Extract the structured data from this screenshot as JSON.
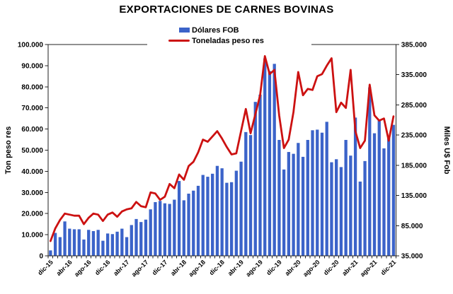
{
  "chart_data": {
    "type": "bar+line",
    "title": "EXPORTACIONES DE CARNES BOVINAS",
    "x_tick_labels": [
      "dic-15",
      "abr-16",
      "ago-16",
      "dic-16",
      "abr-17",
      "ago-17",
      "dic-17",
      "abr-18",
      "ago-18",
      "dic-18",
      "abr-19",
      "ago-19",
      "dic-19",
      "abr-20",
      "ago-20",
      "dic-20",
      "abr-21",
      "ago-21",
      "dic-21"
    ],
    "x_tick_interval": 4,
    "n_points": 73,
    "left_axis": {
      "title": "Ton peso res",
      "min": 0,
      "max": 100000,
      "step": 10000,
      "tick_labels": [
        "0",
        "10.000",
        "20.000",
        "30.000",
        "40.000",
        "50.000",
        "60.000",
        "70.000",
        "80.000",
        "90.000",
        "100.000"
      ]
    },
    "right_axis": {
      "title": "Miles U$ Fob",
      "min": 35000,
      "max": 385000,
      "step": 50000,
      "tick_labels": [
        "35.000",
        "85.000",
        "135.000",
        "185.000",
        "235.000",
        "285.000",
        "335.000",
        "385.000"
      ]
    },
    "series": [
      {
        "name": "Dólares FOB",
        "type": "bar",
        "axis": "right",
        "color": "#3B63C9",
        "values": [
          44000,
          73000,
          66000,
          92000,
          80000,
          79000,
          79000,
          62000,
          78000,
          76000,
          78000,
          60000,
          72000,
          71000,
          75000,
          80000,
          66000,
          86000,
          96000,
          91000,
          95000,
          112000,
          124000,
          126000,
          122000,
          121000,
          128000,
          159000,
          127000,
          138000,
          143000,
          151000,
          169000,
          166000,
          171000,
          184000,
          180000,
          156000,
          157000,
          176000,
          191000,
          240000,
          235000,
          290000,
          302000,
          362000,
          341000,
          353000,
          227000,
          178000,
          207000,
          204000,
          222000,
          199000,
          227000,
          243000,
          244000,
          239000,
          257000,
          190000,
          195000,
          182000,
          227000,
          201000,
          264000,
          158000,
          192000,
          314000,
          238000,
          260000,
          213000,
          230000,
          252000
        ]
      },
      {
        "name": "Toneladas peso res",
        "type": "line",
        "axis": "left",
        "color": "#CC1111",
        "values": [
          7000,
          13000,
          17000,
          20000,
          19500,
          19000,
          19000,
          15000,
          18000,
          20000,
          19500,
          16500,
          19500,
          20500,
          18500,
          21000,
          22000,
          22500,
          25500,
          23500,
          23000,
          30000,
          29500,
          26500,
          28000,
          34000,
          32000,
          38500,
          36000,
          42500,
          44500,
          49000,
          55000,
          54000,
          56500,
          59000,
          55500,
          51500,
          48000,
          48500,
          59000,
          69500,
          58000,
          67000,
          76000,
          94500,
          86000,
          88000,
          66500,
          51000,
          55000,
          68000,
          87000,
          76000,
          79000,
          78500,
          85000,
          86000,
          90000,
          93500,
          68000,
          72500,
          70000,
          88000,
          59000,
          51000,
          54500,
          81000,
          66500,
          64000,
          65000,
          54500,
          66000
        ]
      }
    ],
    "plot": {
      "border_color": "#222222",
      "background": "#ffffff"
    }
  }
}
